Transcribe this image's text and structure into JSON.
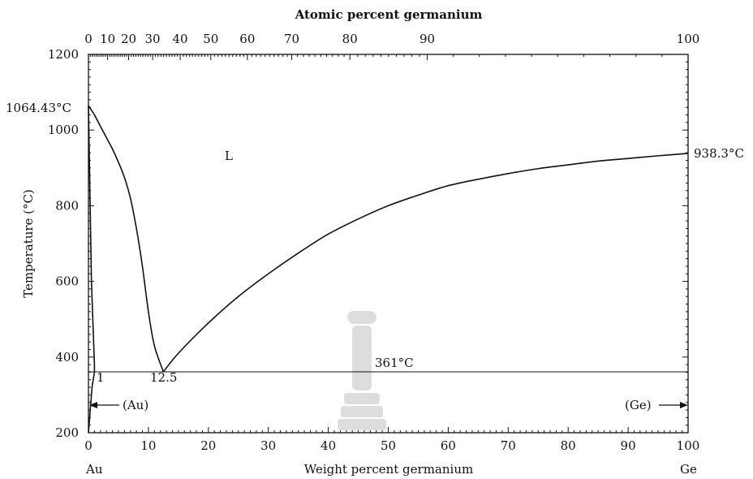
{
  "chart_data": {
    "type": "line",
    "title": "Atomic percent germanium",
    "xlabel": "Weight percent germanium",
    "ylabel": "Temperature (°C)",
    "xlim": [
      0,
      100
    ],
    "ylim": [
      200,
      1200
    ],
    "x_ticks": [
      0,
      10,
      20,
      30,
      40,
      50,
      60,
      70,
      80,
      90,
      100
    ],
    "y_ticks": [
      200,
      400,
      600,
      800,
      1000,
      1200
    ],
    "top_axis": {
      "label": "Atomic percent germanium",
      "ticks_at_percent": [
        0,
        10,
        20,
        30,
        40,
        50,
        60,
        70,
        80,
        90,
        100
      ],
      "tick_weight_percent": [
        0,
        3.2,
        6.7,
        10.7,
        15.3,
        20.4,
        26.5,
        33.9,
        43.6,
        56.5,
        100
      ]
    },
    "endpoint_labels": {
      "left": "Au",
      "right": "Ge"
    },
    "grid": false,
    "series": [
      {
        "id": "liquidus-au-side",
        "x": [
          0,
          1,
          2,
          3,
          4,
          5,
          6,
          7,
          8,
          9,
          10,
          11,
          12.5
        ],
        "y": [
          1064.43,
          1040,
          1010,
          980,
          950,
          915,
          875,
          820,
          740,
          640,
          520,
          430,
          361
        ]
      },
      {
        "id": "liquidus-ge-side",
        "x": [
          12.5,
          15,
          20,
          25,
          30,
          35,
          40,
          45,
          50,
          55,
          60,
          65,
          70,
          75,
          80,
          85,
          90,
          95,
          100
        ],
        "y": [
          361,
          410,
          490,
          560,
          620,
          675,
          725,
          765,
          800,
          828,
          853,
          870,
          885,
          898,
          908,
          918,
          925,
          932,
          938.3
        ]
      },
      {
        "id": "solidus-au",
        "x": [
          0,
          0.5,
          1,
          1
        ],
        "y": [
          1064.43,
          600,
          380,
          361
        ]
      },
      {
        "id": "solvus-au",
        "x": [
          1,
          0.6,
          0.3,
          0
        ],
        "y": [
          361,
          320,
          260,
          200
        ]
      },
      {
        "id": "eutectic-line",
        "x": [
          0,
          100
        ],
        "y": [
          361,
          361
        ]
      }
    ],
    "annotations": {
      "au_melting": "1064.43°C",
      "ge_melting": "938.3°C",
      "liquid_label": "L",
      "eutectic_temp": "361°C",
      "au_solubility": "1",
      "eutectic_comp": "12.5",
      "au_phase": "(Au)",
      "ge_phase": "(Ge)"
    }
  }
}
